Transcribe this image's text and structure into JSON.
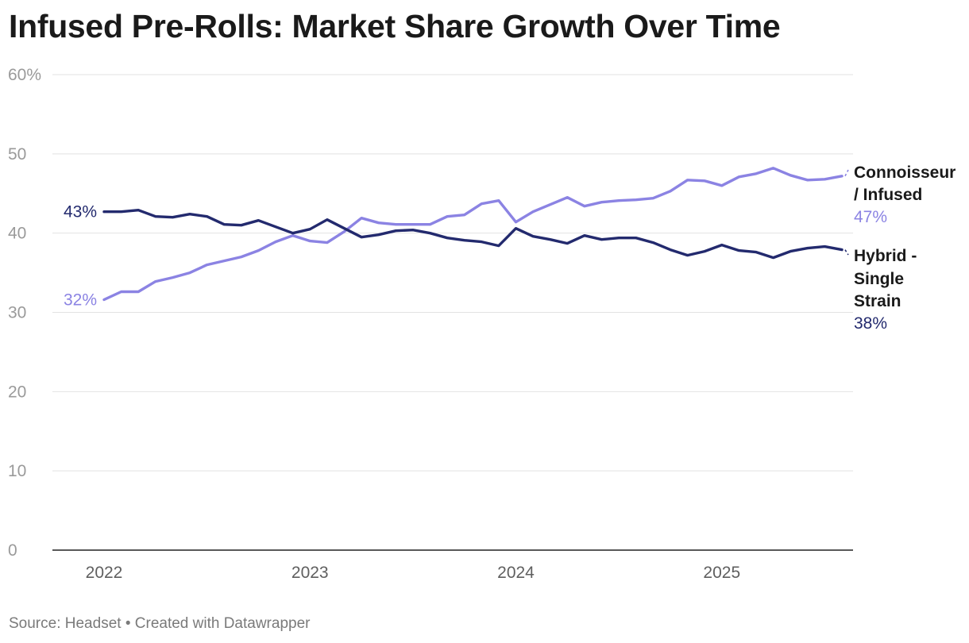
{
  "header": {
    "title": "Infused Pre-Rolls: Market Share Growth Over Time"
  },
  "footer": {
    "source_prefix": "Source: ",
    "source": "Headset",
    "separator": " • ",
    "credit": "Created with Datawrapper"
  },
  "colors": {
    "connoisseur": "#8b83e3",
    "hybrid": "#232a6e",
    "grid": "#e2e2e2",
    "axis": "#222222"
  },
  "chart_data": {
    "type": "line",
    "title": "Infused Pre-Rolls: Market Share Growth Over Time",
    "xlabel": "",
    "ylabel": "",
    "ylim": [
      0,
      60
    ],
    "yticks": [
      0,
      10,
      20,
      30,
      40,
      50,
      60
    ],
    "ytick_labels": [
      "0",
      "10",
      "20",
      "30",
      "40",
      "50",
      "60%"
    ],
    "xlim": [
      "2021-12",
      "2025-08"
    ],
    "xticks": [
      "2022",
      "2023",
      "2024",
      "2025"
    ],
    "grid": true,
    "legend": "direct labels at line ends",
    "x": [
      "2022-01",
      "2022-02",
      "2022-03",
      "2022-04",
      "2022-05",
      "2022-06",
      "2022-07",
      "2022-08",
      "2022-09",
      "2022-10",
      "2022-11",
      "2022-12",
      "2023-01",
      "2023-02",
      "2023-03",
      "2023-04",
      "2023-05",
      "2023-06",
      "2023-07",
      "2023-08",
      "2023-09",
      "2023-10",
      "2023-11",
      "2023-12",
      "2024-01",
      "2024-02",
      "2024-03",
      "2024-04",
      "2024-05",
      "2024-06",
      "2024-07",
      "2024-08",
      "2024-09",
      "2024-10",
      "2024-11",
      "2024-12",
      "2025-01",
      "2025-02",
      "2025-03",
      "2025-04",
      "2025-05",
      "2025-06",
      "2025-07",
      "2025-08"
    ],
    "series": [
      {
        "key": "connoisseur",
        "name_lines": [
          "Connoisseur",
          "/ Infused"
        ],
        "start_label": "32%",
        "end_label": "47%",
        "values": [
          31.6,
          32.6,
          32.6,
          33.9,
          34.4,
          35.0,
          36.0,
          36.5,
          37.0,
          37.8,
          38.9,
          39.7,
          39.0,
          38.8,
          40.2,
          41.9,
          41.3,
          41.1,
          41.1,
          41.1,
          42.1,
          42.3,
          43.7,
          44.1,
          41.4,
          42.7,
          43.6,
          44.5,
          43.4,
          43.9,
          44.1,
          44.2,
          44.4,
          45.3,
          46.7,
          46.6,
          46.0,
          47.1,
          47.5,
          48.2,
          47.3,
          46.7,
          46.8,
          47.2
        ]
      },
      {
        "key": "hybrid",
        "name_lines": [
          "Hybrid -",
          "Single",
          "Strain"
        ],
        "start_label": "43%",
        "end_label": "38%",
        "values": [
          42.7,
          42.7,
          42.9,
          42.1,
          42.0,
          42.4,
          42.1,
          41.1,
          41.0,
          41.6,
          40.8,
          40.0,
          40.5,
          41.7,
          40.6,
          39.5,
          39.8,
          40.3,
          40.4,
          40.0,
          39.4,
          39.1,
          38.9,
          38.4,
          40.6,
          39.6,
          39.2,
          38.7,
          39.7,
          39.2,
          39.4,
          39.4,
          38.8,
          37.9,
          37.2,
          37.7,
          38.5,
          37.8,
          37.6,
          36.9,
          37.7,
          38.1,
          38.3,
          37.9
        ]
      }
    ]
  }
}
